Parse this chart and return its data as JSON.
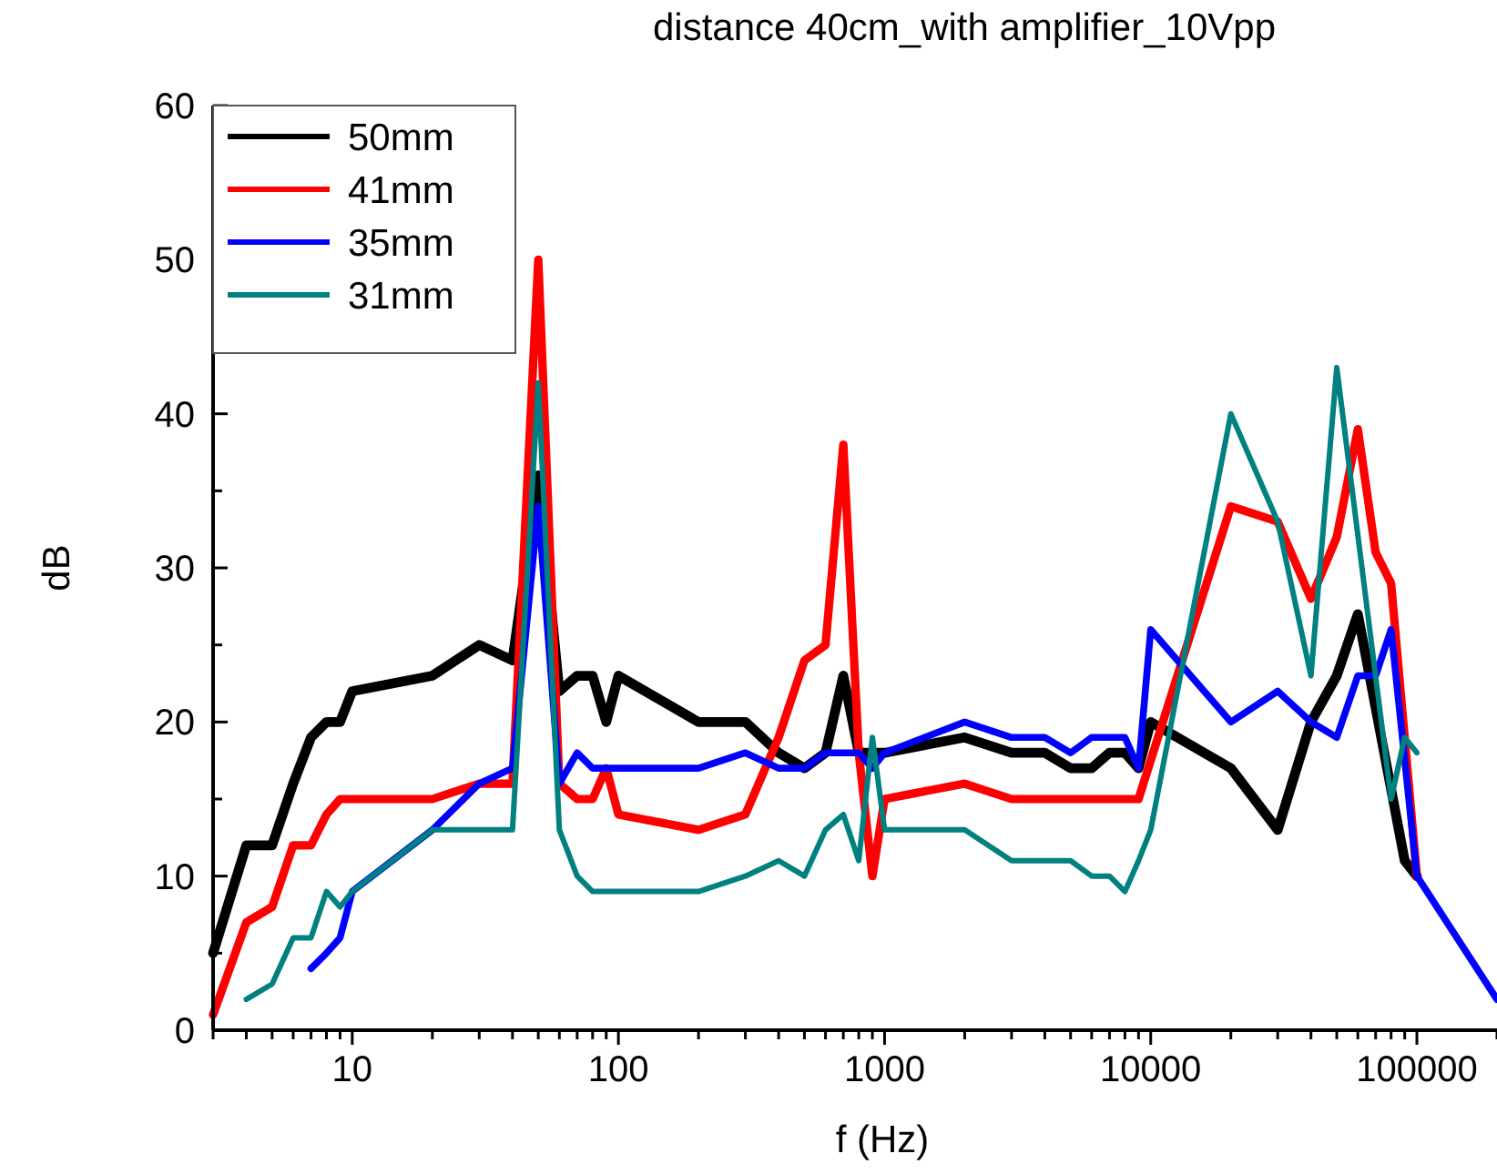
{
  "chart_data": {
    "type": "line",
    "title": "distance 40cm_with amplifier_10Vpp",
    "xlabel": "f (Hz)",
    "ylabel": "dB",
    "log": "x",
    "legend": "top left",
    "grid": false,
    "marker": "none",
    "line_style": "solid",
    "xlim": [
      3,
      200000
    ],
    "ylim": [
      0,
      60
    ],
    "xticks": [
      {
        "value": 3,
        "label": null
      },
      {
        "value": 4,
        "label": null
      },
      {
        "value": 5,
        "label": null
      },
      {
        "value": 6,
        "label": null
      },
      {
        "value": 7,
        "label": null
      },
      {
        "value": 8,
        "label": null
      },
      {
        "value": 9,
        "label": null
      },
      10,
      {
        "value": 20,
        "label": null
      },
      {
        "value": 30,
        "label": null
      },
      {
        "value": 40,
        "label": null
      },
      {
        "value": 50,
        "label": null
      },
      {
        "value": 60,
        "label": null
      },
      {
        "value": 70,
        "label": null
      },
      {
        "value": 80,
        "label": null
      },
      {
        "value": 90,
        "label": null
      },
      100,
      {
        "value": 200,
        "label": null
      },
      {
        "value": 300,
        "label": null
      },
      {
        "value": 400,
        "label": null
      },
      {
        "value": 500,
        "label": null
      },
      {
        "value": 600,
        "label": null
      },
      {
        "value": 700,
        "label": null
      },
      {
        "value": 800,
        "label": null
      },
      {
        "value": 900,
        "label": null
      },
      1000,
      {
        "value": 2000,
        "label": null
      },
      {
        "value": 3000,
        "label": null
      },
      {
        "value": 4000,
        "label": null
      },
      {
        "value": 5000,
        "label": null
      },
      {
        "value": 6000,
        "label": null
      },
      {
        "value": 7000,
        "label": null
      },
      {
        "value": 8000,
        "label": null
      },
      {
        "value": 9000,
        "label": null
      },
      10000,
      {
        "value": 20000,
        "label": null
      },
      {
        "value": 30000,
        "label": null
      },
      {
        "value": 40000,
        "label": null
      },
      {
        "value": 50000,
        "label": null
      },
      {
        "value": 60000,
        "label": null
      },
      {
        "value": 70000,
        "label": null
      },
      {
        "value": 80000,
        "label": null
      },
      {
        "value": 90000,
        "label": null
      },
      100000,
      {
        "value": 200000,
        "label": null
      }
    ],
    "yticks": [
      0,
      {
        "value": 5,
        "label": null
      },
      10,
      {
        "value": 15,
        "label": null
      },
      20,
      {
        "value": 25,
        "label": null
      },
      30,
      {
        "value": 35,
        "label": null
      },
      40,
      {
        "value": 45,
        "label": null
      },
      50,
      {
        "value": 55,
        "label": null
      },
      60
    ],
    "series": [
      {
        "name": "50mm",
        "color": "#000000",
        "x": [
          3,
          4,
          5,
          6,
          7,
          8,
          9,
          10,
          20,
          30,
          40,
          50,
          60,
          70,
          80,
          90,
          100,
          200,
          300,
          400,
          500,
          600,
          700,
          800,
          900,
          1000,
          2000,
          3000,
          4000,
          5000,
          6000,
          7000,
          8000,
          9000,
          10000,
          20000,
          30000,
          40000,
          50000,
          60000,
          90000,
          100000
        ],
        "values": [
          5,
          12,
          12,
          16,
          19,
          20,
          20,
          22,
          23,
          25,
          24,
          36,
          22,
          23,
          23,
          20,
          23,
          20,
          20,
          18,
          17,
          18,
          23,
          18,
          18,
          18,
          19,
          18,
          18,
          17,
          17,
          18,
          18,
          17,
          20,
          17,
          13,
          20,
          23,
          27,
          11,
          10
        ]
      },
      {
        "name": "41mm",
        "color": "#ff0000",
        "x": [
          3,
          4,
          5,
          6,
          7,
          8,
          9,
          10,
          20,
          30,
          40,
          50,
          60,
          70,
          80,
          90,
          100,
          200,
          300,
          400,
          500,
          600,
          700,
          800,
          900,
          1000,
          2000,
          3000,
          4000,
          5000,
          6000,
          7000,
          8000,
          9000,
          20000,
          30000,
          40000,
          50000,
          60000,
          70000,
          80000,
          100000
        ],
        "values": [
          1,
          7,
          8,
          12,
          12,
          14,
          15,
          15,
          15,
          16,
          16,
          50,
          16,
          15,
          15,
          17,
          14,
          13,
          14,
          19,
          24,
          25,
          38,
          18,
          10,
          15,
          16,
          15,
          15,
          15,
          15,
          15,
          15,
          15,
          34,
          33,
          28,
          32,
          39,
          31,
          29,
          10
        ]
      },
      {
        "name": "35mm",
        "color": "#0000ff",
        "x": [
          7,
          8,
          9,
          10,
          20,
          30,
          40,
          50,
          60,
          70,
          80,
          90,
          100,
          200,
          300,
          400,
          500,
          600,
          700,
          800,
          900,
          1000,
          2000,
          3000,
          4000,
          5000,
          6000,
          7000,
          8000,
          9000,
          10000,
          20000,
          30000,
          40000,
          50000,
          60000,
          70000,
          80000,
          100000,
          200000
        ],
        "values": [
          4,
          5,
          6,
          9,
          13,
          16,
          17,
          34,
          16,
          18,
          17,
          17,
          17,
          17,
          18,
          17,
          17,
          18,
          18,
          18,
          17,
          18,
          20,
          19,
          19,
          18,
          19,
          19,
          19,
          17,
          26,
          20,
          22,
          20,
          19,
          23,
          23,
          26,
          10,
          2
        ]
      },
      {
        "name": "31mm",
        "color": "#008080",
        "x": [
          4,
          5,
          6,
          7,
          8,
          9,
          10,
          20,
          30,
          40,
          50,
          60,
          70,
          80,
          90,
          100,
          200,
          300,
          400,
          500,
          600,
          700,
          800,
          900,
          1000,
          2000,
          3000,
          4000,
          5000,
          6000,
          7000,
          8000,
          9000,
          10000,
          20000,
          30000,
          40000,
          50000,
          80000,
          90000,
          100000
        ],
        "values": [
          2,
          3,
          6,
          6,
          9,
          8,
          9,
          13,
          13,
          13,
          42,
          13,
          10,
          9,
          9,
          9,
          9,
          10,
          11,
          10,
          13,
          14,
          11,
          19,
          13,
          13,
          11,
          11,
          11,
          10,
          10,
          9,
          11,
          13,
          40,
          33,
          23,
          43,
          15,
          19,
          18
        ]
      }
    ]
  }
}
